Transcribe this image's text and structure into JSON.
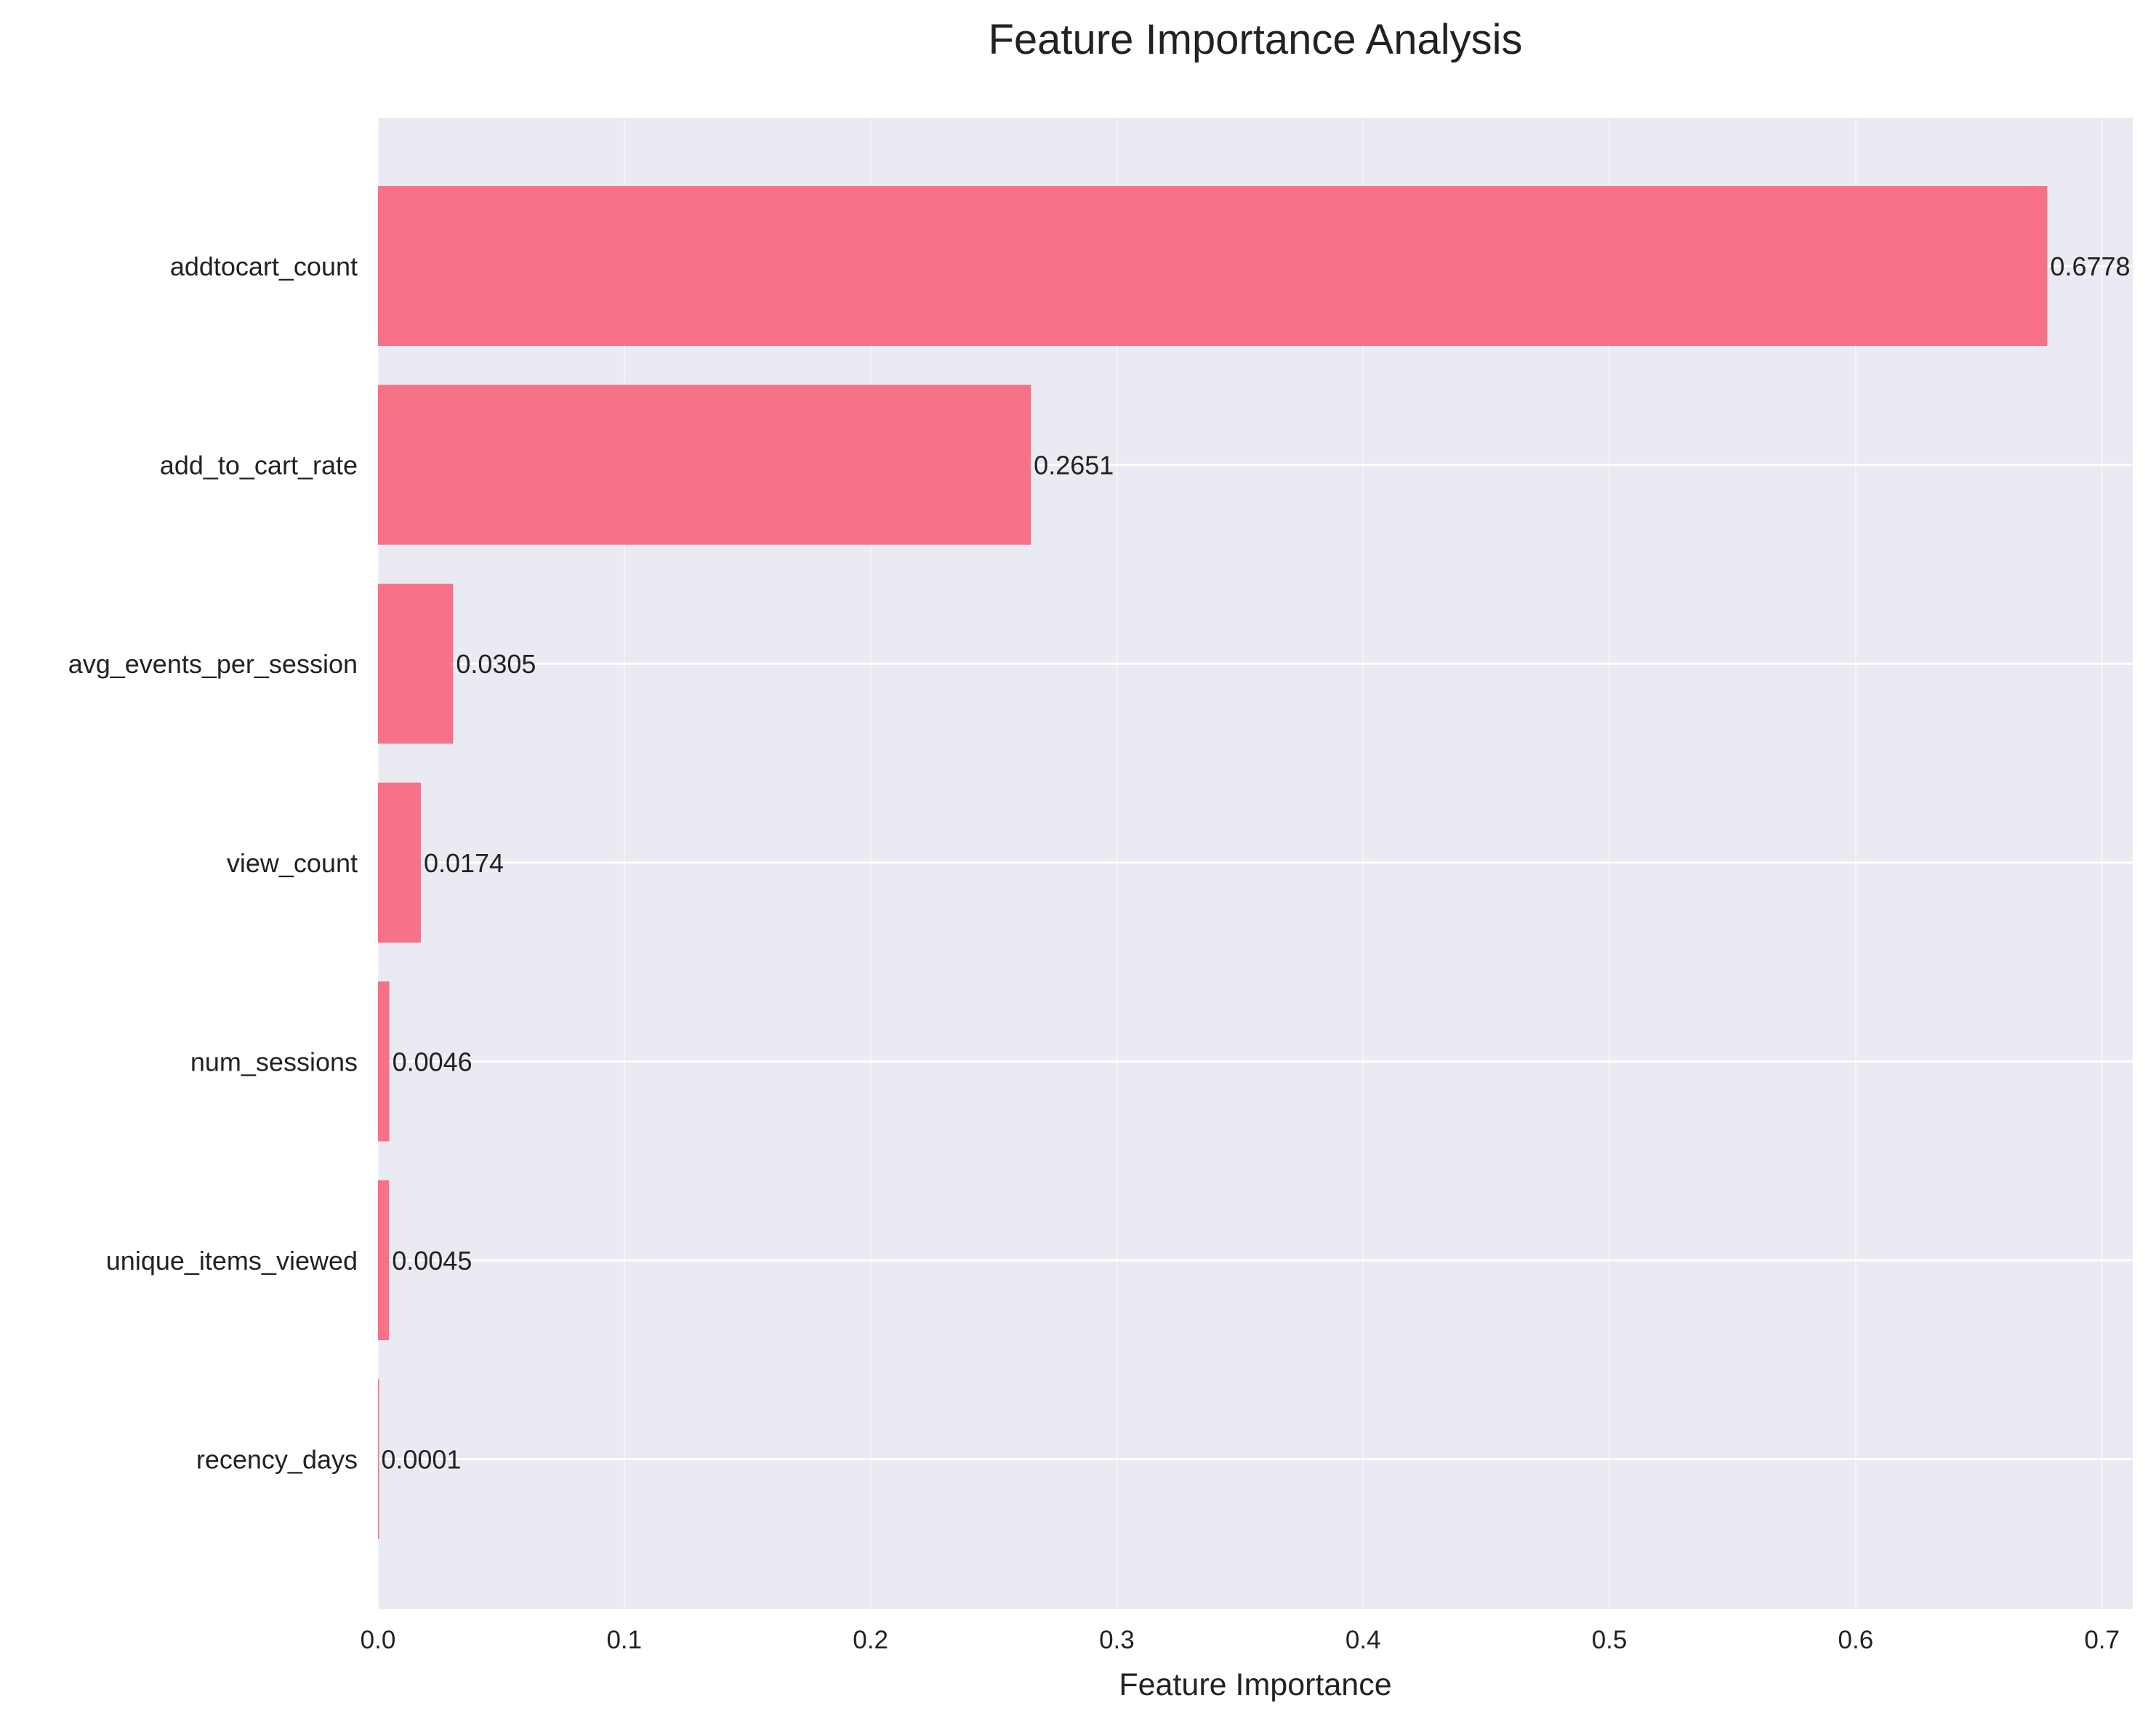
{
  "chart_data": {
    "type": "bar",
    "orientation": "horizontal",
    "title": "Feature Importance Analysis",
    "xlabel": "Feature Importance",
    "ylabel": "",
    "xlim": [
      0,
      0.7125
    ],
    "xticks": [
      0,
      0.1,
      0.2,
      0.3,
      0.4,
      0.5,
      0.6,
      0.7
    ],
    "xtick_labels": [
      "0.0",
      "0.1",
      "0.2",
      "0.3",
      "0.4",
      "0.5",
      "0.6",
      "0.7"
    ],
    "categories": [
      "addtocart_count",
      "add_to_cart_rate",
      "avg_events_per_session",
      "view_count",
      "num_sessions",
      "unique_items_viewed",
      "recency_days"
    ],
    "values": [
      0.6778,
      0.2651,
      0.0305,
      0.0174,
      0.0046,
      0.0045,
      0.0001
    ],
    "value_labels": [
      "0.6778",
      "0.2651",
      "0.0305",
      "0.0174",
      "0.0046",
      "0.0045",
      "0.0001"
    ],
    "grid": true,
    "colors": {
      "bar": "#f77189",
      "plot_background": "#eaeaf2",
      "grid": "#ffffff",
      "text": "#222222"
    }
  }
}
